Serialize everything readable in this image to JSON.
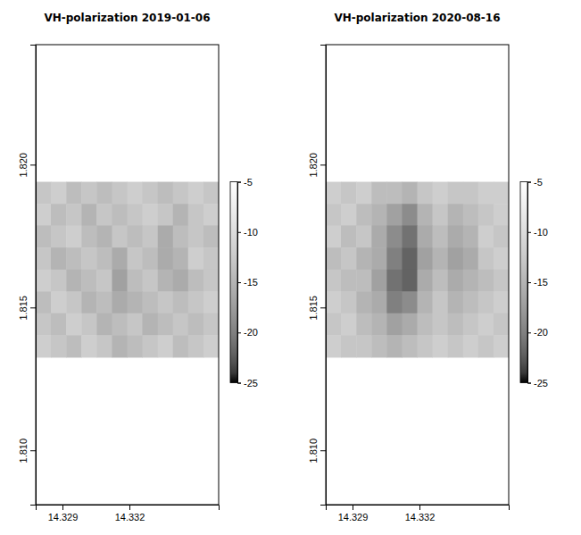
{
  "chart_data": [
    {
      "type": "heatmap",
      "title": "VH-polarization 2019-01-06",
      "xlim": [
        14.3278,
        14.336
      ],
      "ylim": [
        1.8081,
        1.8242
      ],
      "xticks": [
        14.329,
        14.332
      ],
      "yticks": [
        {
          "value": 1.81,
          "label": "1.810"
        },
        1.815,
        {
          "value": 1.82,
          "label": "1.820"
        }
      ],
      "x_edges": [
        14.3278,
        14.32848,
        14.32917,
        14.32985,
        14.33053,
        14.33122,
        14.3319,
        14.33258,
        14.33327,
        14.33395,
        14.33463,
        14.33532,
        14.336
      ],
      "y_edges": [
        1.8194,
        1.81863,
        1.81787,
        1.8171,
        1.81633,
        1.81556,
        1.8148,
        1.81403,
        1.81326
      ],
      "values": [
        [
          -13,
          -12,
          -14,
          -13,
          -14,
          -13,
          -12,
          -13,
          -14,
          -13,
          -12,
          -13
        ],
        [
          -12,
          -14,
          -13,
          -15,
          -13,
          -14,
          -13,
          -12,
          -13,
          -15,
          -13,
          -12
        ],
        [
          -14,
          -13,
          -12,
          -14,
          -15,
          -13,
          -14,
          -13,
          -16,
          -14,
          -13,
          -14
        ],
        [
          -13,
          -15,
          -14,
          -13,
          -14,
          -16,
          -13,
          -14,
          -16,
          -15,
          -12,
          -13
        ],
        [
          -12,
          -13,
          -15,
          -14,
          -13,
          -17,
          -14,
          -13,
          -15,
          -16,
          -14,
          -13
        ],
        [
          -14,
          -12,
          -13,
          -15,
          -14,
          -16,
          -15,
          -14,
          -13,
          -14,
          -13,
          -12
        ],
        [
          -13,
          -14,
          -12,
          -13,
          -15,
          -14,
          -13,
          -15,
          -14,
          -13,
          -14,
          -13
        ],
        [
          -12,
          -13,
          -14,
          -12,
          -13,
          -15,
          -14,
          -13,
          -12,
          -14,
          -13,
          -12
        ]
      ],
      "color_range": [
        -25,
        -5
      ],
      "color_ticks": [
        -5,
        -10,
        -15,
        -20,
        -25
      ]
    },
    {
      "type": "heatmap",
      "title": "VH-polarization 2020-08-16",
      "xlim": [
        14.3278,
        14.336
      ],
      "ylim": [
        1.8081,
        1.8242
      ],
      "xticks": [
        14.329,
        14.332
      ],
      "yticks": [
        {
          "value": 1.81,
          "label": "1.810"
        },
        1.815,
        {
          "value": 1.82,
          "label": "1.820"
        }
      ],
      "x_edges": [
        14.3278,
        14.32848,
        14.32917,
        14.32985,
        14.33053,
        14.33122,
        14.3319,
        14.33258,
        14.33327,
        14.33395,
        14.33463,
        14.33532,
        14.336
      ],
      "y_edges": [
        1.8194,
        1.81863,
        1.81787,
        1.8171,
        1.81633,
        1.81556,
        1.8148,
        1.81403,
        1.81326
      ],
      "values": [
        [
          -12,
          -13,
          -12,
          -14,
          -14,
          -15,
          -13,
          -12,
          -13,
          -13,
          -12,
          -12
        ],
        [
          -13,
          -12,
          -14,
          -15,
          -17,
          -19,
          -15,
          -13,
          -15,
          -14,
          -13,
          -12
        ],
        [
          -12,
          -14,
          -13,
          -16,
          -19,
          -21,
          -16,
          -14,
          -16,
          -15,
          -12,
          -13
        ],
        [
          -14,
          -13,
          -15,
          -16,
          -20,
          -22,
          -17,
          -15,
          -17,
          -16,
          -13,
          -12
        ],
        [
          -13,
          -14,
          -14,
          -17,
          -21,
          -22,
          -16,
          -14,
          -16,
          -15,
          -14,
          -13
        ],
        [
          -12,
          -13,
          -15,
          -16,
          -20,
          -19,
          -15,
          -13,
          -15,
          -14,
          -13,
          -12
        ],
        [
          -13,
          -12,
          -14,
          -15,
          -17,
          -16,
          -14,
          -13,
          -14,
          -13,
          -12,
          -13
        ],
        [
          -12,
          -13,
          -13,
          -14,
          -15,
          -14,
          -13,
          -12,
          -13,
          -12,
          -13,
          -12
        ]
      ],
      "color_range": [
        -25,
        -5
      ],
      "color_ticks": [
        -5,
        -10,
        -15,
        -20,
        -25
      ]
    }
  ]
}
